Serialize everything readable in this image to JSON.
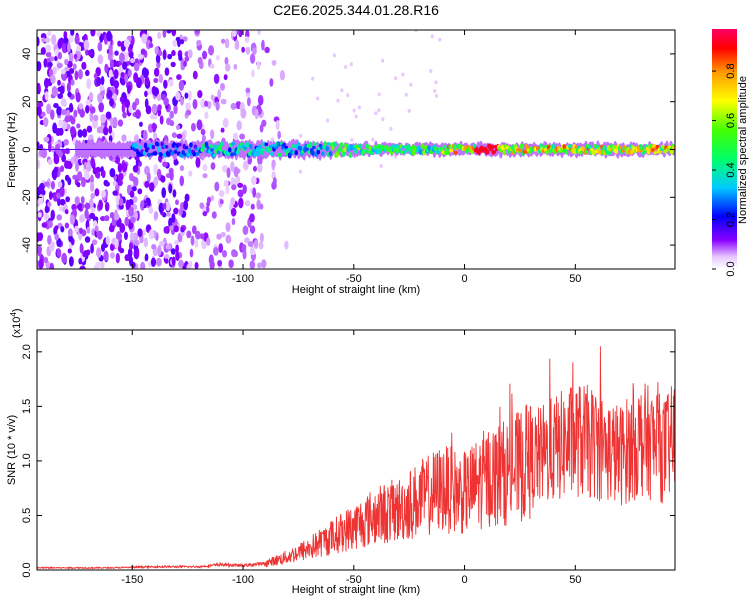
{
  "chart_data": [
    {
      "type": "heatmap",
      "title": "C2E6.2025.344.01.28.R16",
      "xlabel": "Height of straight line (km)",
      "ylabel": "Frequency (Hz)",
      "xlim": [
        -193,
        95
      ],
      "ylim": [
        -50,
        50
      ],
      "x_ticks": [
        -150,
        -100,
        -50,
        0,
        50
      ],
      "y_ticks": [
        40,
        20,
        0,
        -20,
        -40
      ],
      "x_tick_labels": [
        "-150",
        "-100",
        "-50",
        "0",
        "50"
      ],
      "y_tick_labels": [
        "40",
        "20",
        "0",
        "-20",
        "-40"
      ],
      "colorbar": {
        "label": "Normalized spectral amplitude",
        "range": [
          0.0,
          0.97
        ],
        "ticks": [
          0.0,
          0.2,
          0.4,
          0.6,
          0.8
        ],
        "tick_labels": [
          "0.0",
          "0.2",
          "0.4",
          "0.6",
          "0.8"
        ]
      },
      "ridge": {
        "center_frequency": 0,
        "peak_x_range": [
          5,
          15
        ],
        "peak_amplitude": 0.95
      },
      "noise_region_x": [
        -193,
        -90
      ],
      "grid": false
    },
    {
      "type": "line",
      "xlabel": "Height of straight line (km)",
      "ylabel": "SNR (10 * v/v)",
      "y_multiplier": "(x10",
      "y_multiplier_exp": "4",
      "y_multiplier_close": ")",
      "xlim": [
        -193,
        95
      ],
      "ylim": [
        0,
        2.2
      ],
      "x_ticks": [
        -150,
        -100,
        -50,
        0,
        50
      ],
      "x_tick_labels": [
        "-150",
        "-100",
        "-50",
        "0",
        "50"
      ],
      "y_ticks": [
        0.0,
        0.5,
        1.0,
        1.5,
        2.0
      ],
      "y_tick_labels": [
        "0.0",
        "0.5",
        "1.0",
        "1.5",
        "2.0"
      ],
      "color": "#ee3333",
      "series": [
        {
          "x": [
            -193,
            -180,
            -160,
            -140,
            -120,
            -110,
            -100,
            -90,
            -80,
            -70,
            -60,
            -50,
            -40,
            -30,
            -20,
            -10,
            0,
            10,
            20,
            30,
            40,
            50,
            60,
            70,
            80,
            90,
            95
          ],
          "y": [
            0.02,
            0.02,
            0.02,
            0.03,
            0.03,
            0.05,
            0.04,
            0.06,
            0.12,
            0.2,
            0.3,
            0.4,
            0.5,
            0.55,
            0.65,
            0.75,
            0.7,
            0.85,
            0.9,
            1.0,
            1.1,
            1.2,
            1.15,
            1.05,
            1.2,
            1.1,
            1.2
          ]
        }
      ]
    }
  ]
}
